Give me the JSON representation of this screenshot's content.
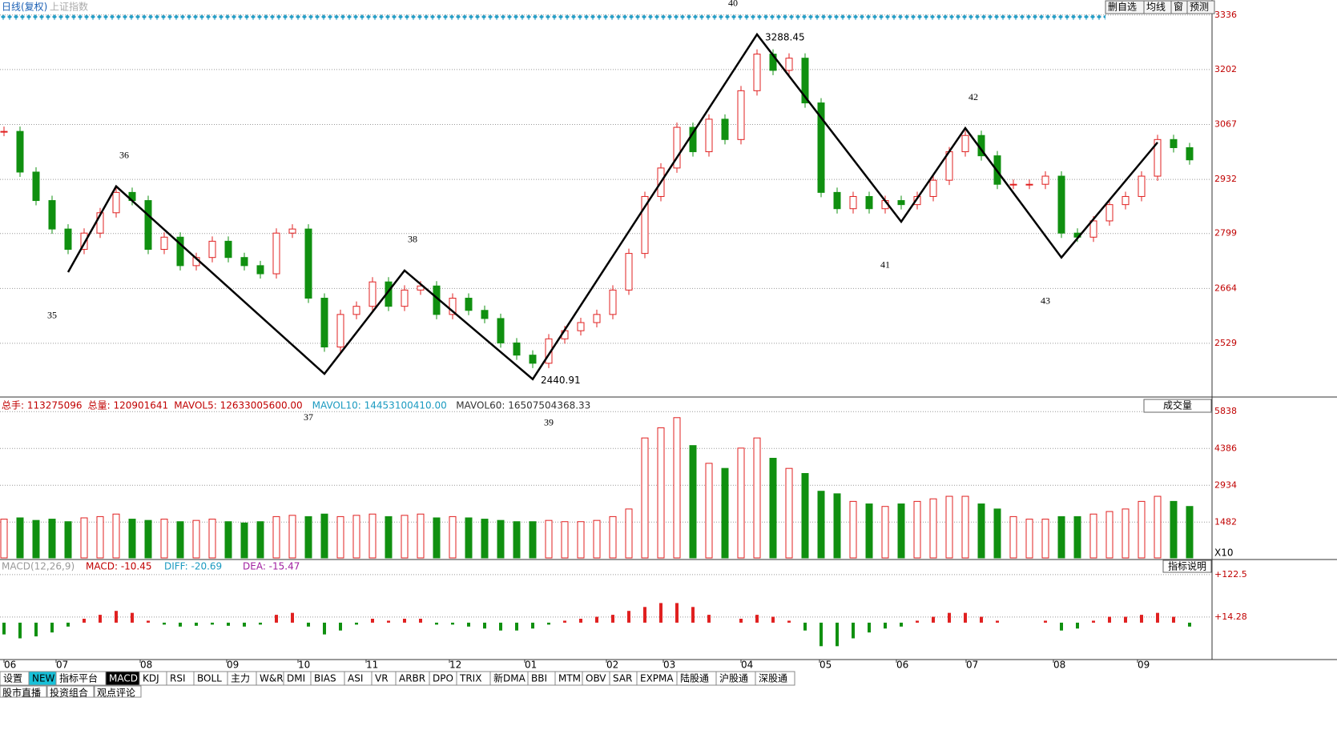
{
  "header": {
    "title": "日线(复权)",
    "symbol": "上证指数",
    "buttons": [
      "删自选",
      "均线",
      "窗",
      "预测"
    ]
  },
  "chart_data": {
    "type": "candlestick",
    "xticks": [
      {
        "value": 0,
        "label": "06"
      },
      {
        "value": 3.25,
        "label": "07"
      },
      {
        "value": 8.5,
        "label": "08"
      },
      {
        "value": 13.9,
        "label": "09"
      },
      {
        "value": 18.35,
        "label": "10"
      },
      {
        "value": 22.6,
        "label": "11"
      },
      {
        "value": 27.8,
        "label": "12"
      },
      {
        "value": 32.5,
        "label": "01"
      },
      {
        "value": 37.6,
        "label": "02"
      },
      {
        "value": 41.15,
        "label": "03"
      },
      {
        "value": 46,
        "label": "04"
      },
      {
        "value": 50.9,
        "label": "05"
      },
      {
        "value": 55.7,
        "label": "06"
      },
      {
        "value": 60.05,
        "label": "07"
      },
      {
        "value": 65.5,
        "label": "08"
      },
      {
        "value": 70.75,
        "label": "09"
      }
    ],
    "closes": [
      3050,
      2950,
      2880,
      2810,
      2760,
      2800,
      2850,
      2900,
      2880,
      2760,
      2790,
      2720,
      2740,
      2780,
      2740,
      2720,
      2700,
      2800,
      2810,
      2640,
      2520,
      2600,
      2620,
      2680,
      2620,
      2660,
      2670,
      2600,
      2640,
      2610,
      2590,
      2530,
      2500,
      2480,
      2540,
      2560,
      2580,
      2600,
      2660,
      2750,
      2890,
      2960,
      3060,
      3000,
      3080,
      3030,
      3150,
      3240,
      3200,
      3230,
      3120,
      2900,
      2860,
      2890,
      2860,
      2880,
      2870,
      2890,
      2930,
      3000,
      3040,
      2990,
      2920,
      2920,
      2920,
      2940,
      2800,
      2790,
      2830,
      2870,
      2890,
      2940,
      3030,
      3010,
      2980
    ],
    "ylim": [
      2399,
      3373
    ],
    "yticks": [
      2529,
      2664,
      2799,
      2932,
      3067,
      3202,
      3336
    ],
    "waves": [
      {
        "label": "35",
        "index": 4,
        "value": 2704
      },
      {
        "label": "36",
        "index": 7,
        "value": 2915
      },
      {
        "label": "37",
        "index": 20,
        "value": 2454
      },
      {
        "label": "38",
        "index": 25,
        "value": 2708
      },
      {
        "label": "39",
        "index": 33,
        "value": 2440.91,
        "price_label": "2440.91"
      },
      {
        "label": "40",
        "index": 47,
        "value": 3288.45,
        "price_label": "3288.45"
      },
      {
        "label": "41",
        "index": 56,
        "value": 2828
      },
      {
        "label": "42",
        "index": 60,
        "value": 3058
      },
      {
        "label": "43",
        "index": 66,
        "value": 2740
      }
    ],
    "trend_end": {
      "index": 72,
      "value": 3023
    },
    "volume": {
      "header": [
        "总手: 113275096",
        "总量: 120901641",
        "MAVOL5: 12633005600.00",
        "MAVOL10: 14453100410.00",
        "MAVOL60: 16507504368.33"
      ],
      "selector": "成交量",
      "unit": "X10",
      "values": [
        1600,
        1650,
        1550,
        1600,
        1500,
        1650,
        1700,
        1800,
        1600,
        1550,
        1600,
        1500,
        1550,
        1600,
        1500,
        1450,
        1500,
        1700,
        1750,
        1700,
        1800,
        1700,
        1750,
        1800,
        1700,
        1750,
        1800,
        1650,
        1700,
        1650,
        1600,
        1550,
        1500,
        1500,
        1550,
        1500,
        1500,
        1550,
        1700,
        2000,
        4800,
        5200,
        5600,
        4500,
        3800,
        3600,
        4400,
        4800,
        4000,
        3600,
        3400,
        2700,
        2600,
        2300,
        2200,
        2100,
        2200,
        2300,
        2400,
        2500,
        2500,
        2200,
        2000,
        1700,
        1600,
        1600,
        1700,
        1700,
        1800,
        1900,
        2000,
        2300,
        2500,
        2300,
        2100
      ],
      "ylim": [
        72,
        6382
      ],
      "yticks": [
        1482,
        2934,
        4386,
        5838
      ]
    },
    "macd": {
      "header": [
        "MACD(12,26,9)",
        "MACD: -10.45",
        "DIFF: -20.69",
        "DEA: -15.47"
      ],
      "button": "指标说明",
      "values": [
        -30,
        -40,
        -35,
        -25,
        -10,
        10,
        20,
        30,
        25,
        5,
        -5,
        -10,
        -8,
        -5,
        -8,
        -10,
        -5,
        20,
        25,
        -10,
        -30,
        -20,
        -5,
        10,
        5,
        10,
        10,
        -5,
        -5,
        -10,
        -15,
        -20,
        -20,
        -15,
        -5,
        5,
        10,
        15,
        20,
        30,
        40,
        50,
        50,
        40,
        20,
        0,
        10,
        20,
        15,
        5,
        -20,
        -60,
        -60,
        -40,
        -25,
        -15,
        -10,
        5,
        15,
        25,
        25,
        15,
        5,
        0,
        0,
        5,
        -20,
        -15,
        5,
        15,
        15,
        20,
        25,
        15,
        -10
      ],
      "ylim": [
        -90,
        159
      ],
      "yticks": [
        {
          "value": 122.5,
          "label": "+122.5"
        },
        {
          "value": 14.28,
          "label": "+14.28"
        }
      ]
    }
  },
  "tabs": [
    "设置",
    "NEW",
    "指标平台",
    "MACD",
    "KDJ",
    "RSI",
    "BOLL",
    "主力",
    "W&R",
    "DMI",
    "BIAS",
    "ASI",
    "VR",
    "ARBR",
    "DPO",
    "TRIX",
    "新DMA",
    "BBI",
    "MTM",
    "OBV",
    "SAR",
    "EXPMA",
    "陆股通",
    "沪股通",
    "深股通"
  ],
  "bottom_tabs": [
    "股市直播",
    "投资组合",
    "观点评论"
  ]
}
